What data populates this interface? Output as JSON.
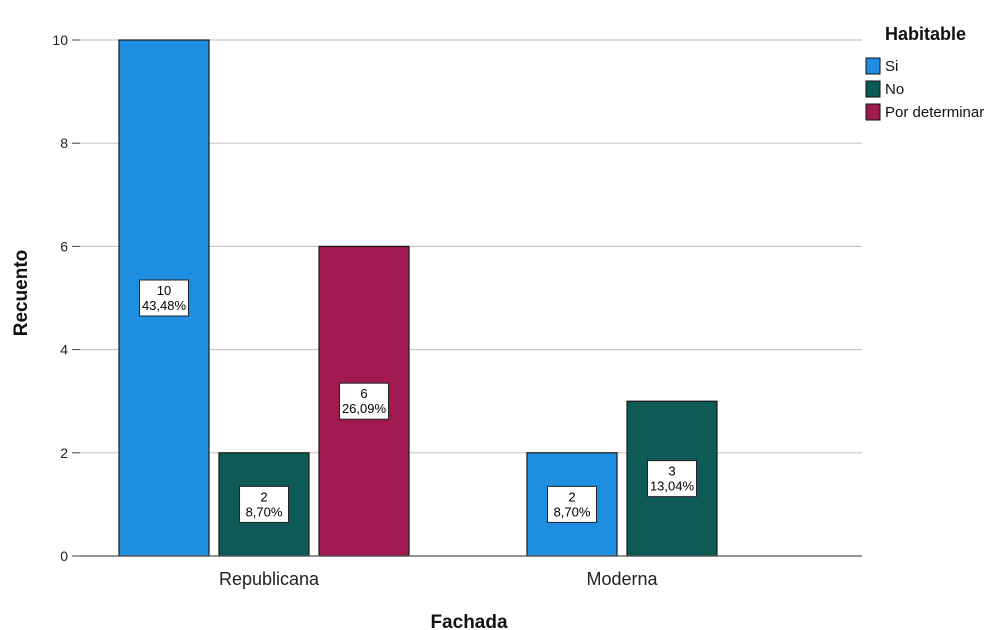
{
  "chart_data": {
    "type": "bar",
    "categories": [
      "Republicana",
      "Moderna"
    ],
    "xlabel": "Fachada",
    "ylabel": "Recuento",
    "ylim": [
      0,
      10
    ],
    "yticks": [
      "0",
      "2",
      "4",
      "6",
      "8",
      "10"
    ],
    "grid": true,
    "legend": {
      "title": "Habitable",
      "position": "top-right"
    },
    "series": [
      {
        "name": "Si",
        "color": "#1e8fe0",
        "values": [
          10,
          2
        ],
        "labels": [
          "43,48%",
          "8,70%"
        ]
      },
      {
        "name": "No",
        "color": "#0e5a57",
        "values": [
          2,
          3
        ],
        "labels": [
          "8,70%",
          "13,04%"
        ]
      },
      {
        "name": "Por determinar",
        "color": "#a01a50",
        "values": [
          6,
          null
        ],
        "labels": [
          "26,09%",
          null
        ]
      }
    ]
  }
}
